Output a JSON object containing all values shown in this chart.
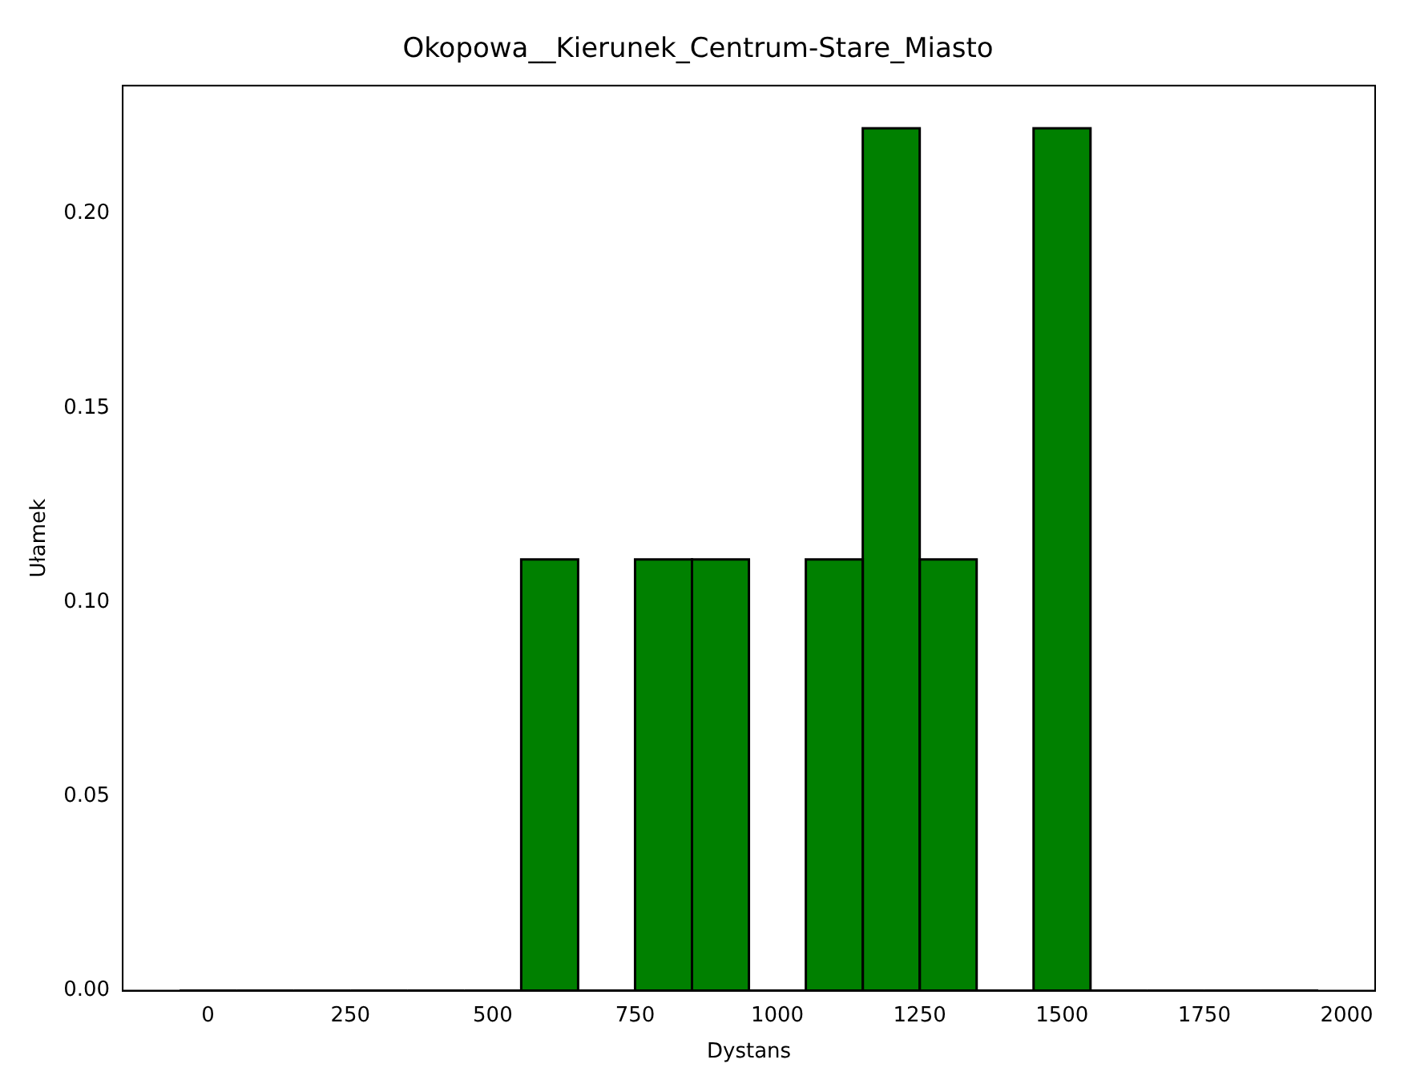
{
  "chart_data": {
    "type": "histogram",
    "title": "Okopowa__Kierunek_Centrum-Stare_Miasto",
    "xlabel": "Dystans",
    "ylabel": "Ułamek",
    "bins": [
      -50,
      50,
      150,
      250,
      350,
      450,
      550,
      650,
      750,
      850,
      950,
      1050,
      1150,
      1250,
      1350,
      1450,
      1550,
      1650,
      1750,
      1850,
      1950
    ],
    "values": [
      0,
      0,
      0,
      0,
      0,
      0,
      0.111,
      0,
      0.111,
      0.111,
      0,
      0.111,
      0.222,
      0.111,
      0,
      0.222,
      0,
      0,
      0,
      0
    ],
    "color": "#008000",
    "xlim": [
      -150,
      2050
    ],
    "xticks": [
      0,
      250,
      500,
      750,
      1000,
      1250,
      1500,
      1750,
      2000
    ],
    "ylim": [
      0,
      0.233
    ],
    "yticks": [
      {
        "value": 0,
        "label": "0.00"
      },
      {
        "value": 0.05,
        "label": "0.05"
      },
      {
        "value": 0.1,
        "label": "0.10"
      },
      {
        "value": 0.15,
        "label": "0.15"
      },
      {
        "value": 0.2,
        "label": "0.20"
      }
    ],
    "grid": false,
    "legend": false
  }
}
